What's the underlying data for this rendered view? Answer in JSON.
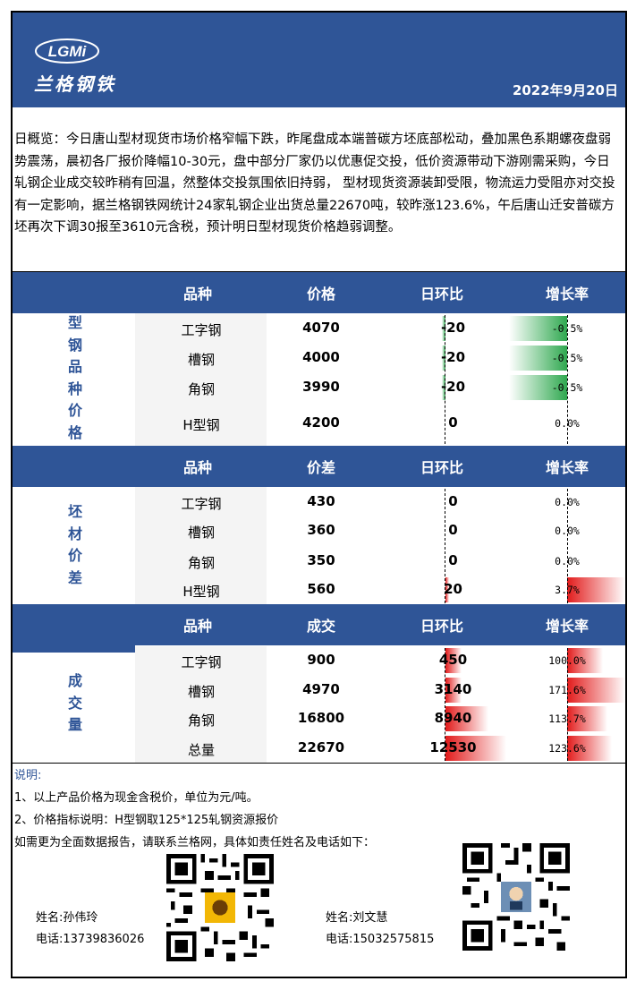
{
  "header": {
    "logo_letters": "LGMi",
    "logo_cn": "兰格钢铁",
    "date": "2022年9月20日"
  },
  "overview": "日概览：今日唐山型材现货市场价格窄幅下跌，昨尾盘成本端普碳方坯底部松动，叠加黑色系期螺夜盘弱势震荡，晨初各厂报价降幅10-30元，盘中部分厂家仍以优惠促交投，低价资源带动下游刚需采购，今日轧钢企业成交较昨稍有回温，然整体交投氛围依旧持弱， 型材现货资源装卸受限，物流运力受阻亦对交投有一定影响，据兰格钢铁网统计24家轧钢企业出货总量22670吨，较昨涨123.6%，午后唐山迁安普碳方坯再次下调30报至3610元含税，预计明日型材现货价格趋弱调整。",
  "sections": [
    {
      "side_label": [
        "型",
        "钢",
        "品",
        "种",
        "价",
        "格"
      ],
      "headers": [
        "品种",
        "价格",
        "日环比",
        "增长率"
      ],
      "rows": [
        {
          "name": "工字钢",
          "value": "4070",
          "change": "-20",
          "rate": "-0.5%",
          "rate_num": -0.5
        },
        {
          "name": "槽钢",
          "value": "4000",
          "change": "-20",
          "rate": "-0.5%",
          "rate_num": -0.5
        },
        {
          "name": "角钢",
          "value": "3990",
          "change": "-20",
          "rate": "-0.5%",
          "rate_num": -0.5
        },
        {
          "name": "H型钢",
          "value": "4200",
          "change": "0",
          "rate": "0.0%",
          "rate_num": 0
        }
      ]
    },
    {
      "side_label": [
        "坯",
        "材",
        "价",
        "差"
      ],
      "headers": [
        "品种",
        "价差",
        "日环比",
        "增长率"
      ],
      "rows": [
        {
          "name": "工字钢",
          "value": "430",
          "change": "0",
          "rate": "0.0%",
          "rate_num": 0
        },
        {
          "name": "槽钢",
          "value": "360",
          "change": "0",
          "rate": "0.0%",
          "rate_num": 0
        },
        {
          "name": "角钢",
          "value": "350",
          "change": "0",
          "rate": "0.0%",
          "rate_num": 0
        },
        {
          "name": "H型钢",
          "value": "560",
          "change": "20",
          "rate": "3.7%",
          "rate_num": 3.7
        }
      ]
    },
    {
      "side_label": [
        "成",
        "交",
        "量"
      ],
      "headers": [
        "品种",
        "成交",
        "日环比",
        "增长率"
      ],
      "rows": [
        {
          "name": "工字钢",
          "value": "900",
          "change": "450",
          "rate": "100.0%",
          "rate_num": 100.0
        },
        {
          "name": "槽钢",
          "value": "4970",
          "change": "3140",
          "rate": "171.6%",
          "rate_num": 171.6
        },
        {
          "name": "角钢",
          "value": "16800",
          "change": "8940",
          "rate": "113.7%",
          "rate_num": 113.7
        },
        {
          "name": "总量",
          "value": "22670",
          "change": "12530",
          "rate": "123.6%",
          "rate_num": 123.6
        }
      ]
    }
  ],
  "notes": {
    "title": "说明:",
    "line1": "1、以上产品价格为现金含税价，单位为元/吨。",
    "line2": "2、价格指标说明：H型钢取125*125轧钢资源报价",
    "line3": "如需更为全面数据报告，请联系兰格网，具体如责任姓名及电话如下："
  },
  "contacts": [
    {
      "name": "姓名:孙伟玲",
      "phone": "电话:13739836026"
    },
    {
      "name": "姓名:刘文慧",
      "phone": "电话:15032575815"
    }
  ],
  "colors": {
    "brand": "#2f5597",
    "up": "#e21b1b",
    "down": "#2fa84f"
  }
}
